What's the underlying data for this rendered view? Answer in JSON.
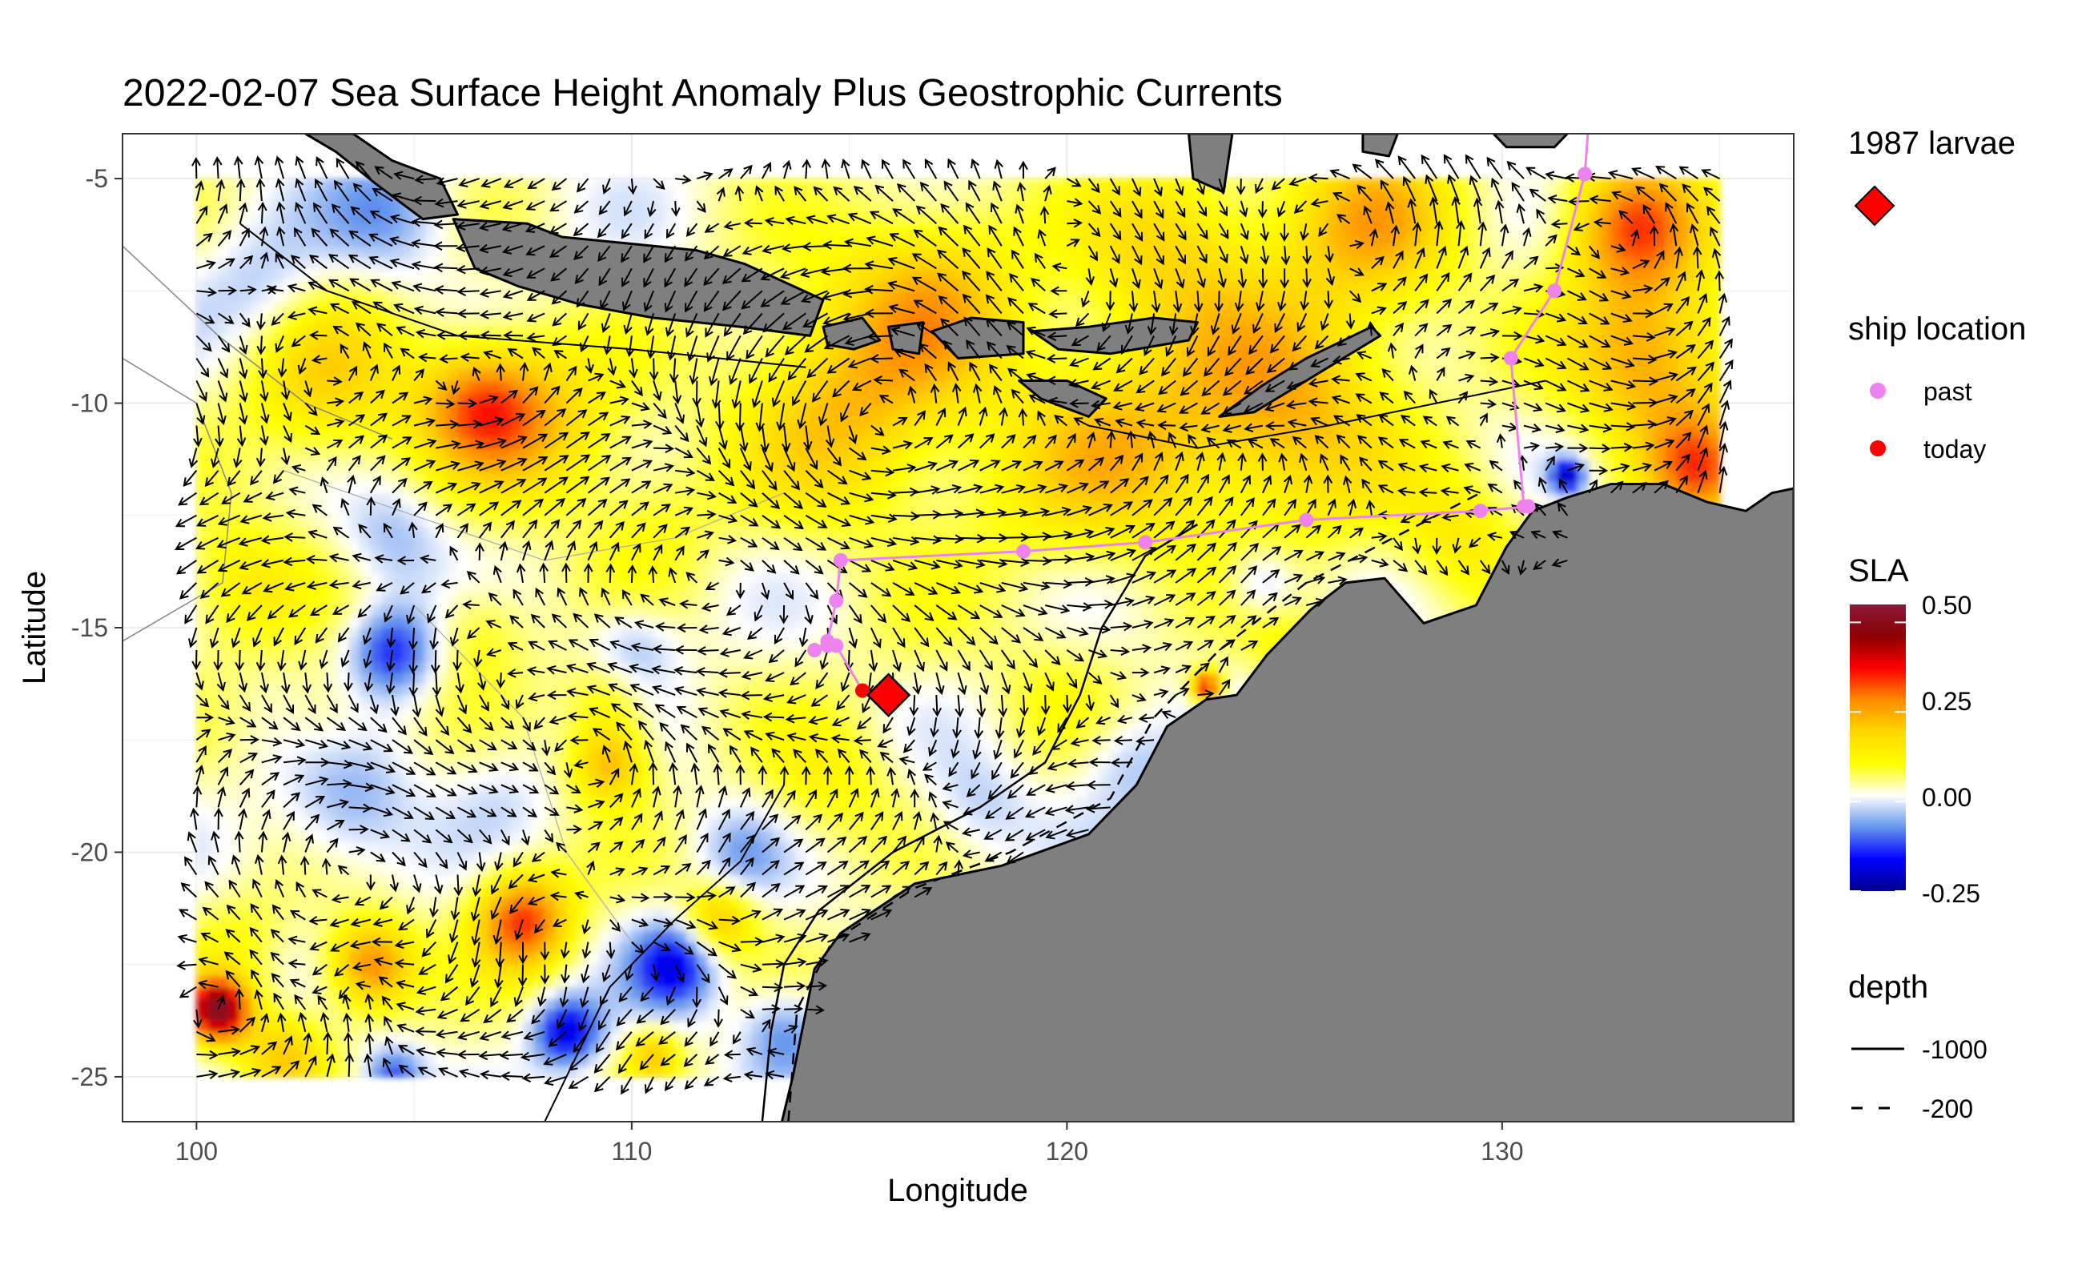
{
  "chart_data": {
    "type": "heatmap",
    "title": "2022-02-07 Sea Surface Height Anomaly Plus Geostrophic Currents",
    "xlabel": "Longitude",
    "ylabel": "Latitude",
    "xlim": [
      98.3,
      136.7
    ],
    "ylim": [
      -26,
      -4
    ],
    "x_ticks": [
      100,
      110,
      120,
      130
    ],
    "y_ticks": [
      -5,
      -10,
      -15,
      -20,
      -25
    ],
    "x_tick_labels": [
      "100",
      "110",
      "120",
      "130"
    ],
    "y_tick_labels": [
      "-5",
      "-10",
      "-15",
      "-20",
      "-25"
    ],
    "grid": true,
    "legend_position": "right",
    "legends": {
      "larvae": {
        "title": "1987 larvae",
        "color": "#FF0000"
      },
      "ship": {
        "title": "ship location",
        "items": [
          {
            "label": "past",
            "color": "#EE82EE"
          },
          {
            "label": "today",
            "color": "#FF0000"
          }
        ]
      },
      "sla": {
        "title": "SLA",
        "range": [
          -0.25,
          0.55
        ],
        "breaks": [
          0.5,
          0.25,
          0.0,
          -0.25
        ],
        "break_labels": [
          "0.50",
          "0.25",
          "0.00",
          "-0.25"
        ],
        "colors": [
          "#00008B",
          "#0000FF",
          "#6495ED",
          "#FFFFFF",
          "#FFFF00",
          "#FFD700",
          "#FF8C00",
          "#FF0000",
          "#8B0000",
          "#8B1A3A"
        ]
      },
      "depth": {
        "title": "depth",
        "items": [
          {
            "label": "-1000",
            "line": "solid"
          },
          {
            "label": "-200",
            "line": "dashed"
          }
        ]
      }
    },
    "sla_grid_extent": {
      "lon": [
        100,
        135
      ],
      "lat": [
        -25,
        -5
      ]
    },
    "sla_anomalies": [
      {
        "lon": 106.5,
        "lat": -10,
        "value": 0.28,
        "spread": 1.4
      },
      {
        "lon": 103,
        "lat": -9.5,
        "value": 0.18,
        "spread": 2.0
      },
      {
        "lon": 108,
        "lat": -10.5,
        "value": 0.18,
        "spread": 1.8
      },
      {
        "lon": 115,
        "lat": -10,
        "value": 0.22,
        "spread": 2.5
      },
      {
        "lon": 125,
        "lat": -10,
        "value": 0.24,
        "spread": 2.5
      },
      {
        "lon": 121,
        "lat": -11,
        "value": 0.2,
        "spread": 2.5
      },
      {
        "lon": 117,
        "lat": -7.5,
        "value": 0.2,
        "spread": 2.0
      },
      {
        "lon": 127,
        "lat": -6,
        "value": 0.22,
        "spread": 2.0
      },
      {
        "lon": 133,
        "lat": -6,
        "value": 0.3,
        "spread": 1.5
      },
      {
        "lon": 133.5,
        "lat": -9,
        "value": 0.26,
        "spread": 2.0
      },
      {
        "lon": 134.5,
        "lat": -11.5,
        "value": 0.26,
        "spread": 1.2
      },
      {
        "lon": 122.5,
        "lat": -6.5,
        "value": 0.18,
        "spread": 2.0
      },
      {
        "lon": 104.5,
        "lat": -5.7,
        "value": -0.06,
        "spread": 1.5
      },
      {
        "lon": 101.5,
        "lat": -7.5,
        "value": -0.04,
        "spread": 1.5
      },
      {
        "lon": 101,
        "lat": -14,
        "value": 0.14,
        "spread": 1.5
      },
      {
        "lon": 104.5,
        "lat": -15.5,
        "value": -0.14,
        "spread": 1.0
      },
      {
        "lon": 103.5,
        "lat": -19,
        "value": -0.06,
        "spread": 1.5
      },
      {
        "lon": 104.5,
        "lat": -13,
        "value": -0.04,
        "spread": 1.2
      },
      {
        "lon": 103,
        "lat": -17,
        "value": 0.1,
        "spread": 1.2
      },
      {
        "lon": 106.5,
        "lat": -15,
        "value": 0.12,
        "spread": 1.2
      },
      {
        "lon": 109.5,
        "lat": -16.5,
        "value": 0.14,
        "spread": 1.0
      },
      {
        "lon": 109.5,
        "lat": -18,
        "value": 0.24,
        "spread": 0.9
      },
      {
        "lon": 110,
        "lat": -15.5,
        "value": -0.06,
        "spread": 1.0
      },
      {
        "lon": 107.5,
        "lat": -21.5,
        "value": 0.34,
        "spread": 1.1
      },
      {
        "lon": 104,
        "lat": -22.5,
        "value": 0.3,
        "spread": 1.0
      },
      {
        "lon": 101,
        "lat": -22,
        "value": 0.1,
        "spread": 1.2
      },
      {
        "lon": 100.5,
        "lat": -23.5,
        "value": 0.5,
        "spread": 0.7
      },
      {
        "lon": 102,
        "lat": -24.5,
        "value": 0.2,
        "spread": 1.0
      },
      {
        "lon": 108.5,
        "lat": -24,
        "value": -0.18,
        "spread": 0.8
      },
      {
        "lon": 111,
        "lat": -22.5,
        "value": -0.16,
        "spread": 1.0
      },
      {
        "lon": 112,
        "lat": -21.5,
        "value": 0.22,
        "spread": 0.8
      },
      {
        "lon": 110.5,
        "lat": -24.5,
        "value": 0.2,
        "spread": 0.6
      },
      {
        "lon": 104.5,
        "lat": -25,
        "value": -0.12,
        "spread": 0.7
      },
      {
        "lon": 113.5,
        "lat": -24,
        "value": -0.08,
        "spread": 1.0
      },
      {
        "lon": 112.5,
        "lat": -20,
        "value": -0.04,
        "spread": 1.0
      },
      {
        "lon": 114.5,
        "lat": -18.5,
        "value": 0.12,
        "spread": 1.5
      },
      {
        "lon": 116.5,
        "lat": -15.5,
        "value": 0.06,
        "spread": 1.5
      },
      {
        "lon": 119.5,
        "lat": -16.5,
        "value": 0.08,
        "spread": 1.5
      },
      {
        "lon": 118,
        "lat": -19,
        "value": -0.03,
        "spread": 1.2
      },
      {
        "lon": 121.5,
        "lat": -18,
        "value": -0.04,
        "spread": 1.2
      },
      {
        "lon": 124.5,
        "lat": -14,
        "value": -0.06,
        "spread": 0.8
      },
      {
        "lon": 126,
        "lat": -12.5,
        "value": 0.06,
        "spread": 1.2
      },
      {
        "lon": 129,
        "lat": -13,
        "value": 0.14,
        "spread": 1.5
      },
      {
        "lon": 125,
        "lat": -15.5,
        "value": 0.1,
        "spread": 1.0
      },
      {
        "lon": 123.2,
        "lat": -16.3,
        "value": 0.4,
        "spread": 0.35
      },
      {
        "lon": 131.5,
        "lat": -11.6,
        "value": -0.2,
        "spread": 0.4
      },
      {
        "lon": 118.5,
        "lat": -12.5,
        "value": 0.06,
        "spread": 1.5
      },
      {
        "lon": 110.5,
        "lat": -12.5,
        "value": 0.1,
        "spread": 1.5
      },
      {
        "lon": 107,
        "lat": -18.5,
        "value": 0.0,
        "spread": 1.2
      }
    ],
    "ship_track_past": [
      {
        "lon": 132,
        "lat": -3.6
      },
      {
        "lon": 131.9,
        "lat": -4.9
      },
      {
        "lon": 131.2,
        "lat": -7.5
      },
      {
        "lon": 130.2,
        "lat": -9
      },
      {
        "lon": 130.5,
        "lat": -12.3
      },
      {
        "lon": 130.6,
        "lat": -12.3
      },
      {
        "lon": 129.5,
        "lat": -12.4
      },
      {
        "lon": 125.5,
        "lat": -12.6
      },
      {
        "lon": 121.8,
        "lat": -13.1
      },
      {
        "lon": 119,
        "lat": -13.3
      },
      {
        "lon": 114.8,
        "lat": -13.5
      },
      {
        "lon": 114.7,
        "lat": -14.4
      },
      {
        "lon": 114.5,
        "lat": -15.3
      },
      {
        "lon": 114.2,
        "lat": -15.5
      },
      {
        "lon": 114.5,
        "lat": -15.4
      },
      {
        "lon": 114.7,
        "lat": -15.4
      }
    ],
    "ship_today": {
      "lon": 115.3,
      "lat": -16.4
    },
    "larvae_1987": [
      {
        "lon": 115.9,
        "lat": -16.5
      }
    ],
    "currents": {
      "field": "geostrophic",
      "grid_step_deg": 0.5
    },
    "land_color": "#7F7F7F"
  }
}
